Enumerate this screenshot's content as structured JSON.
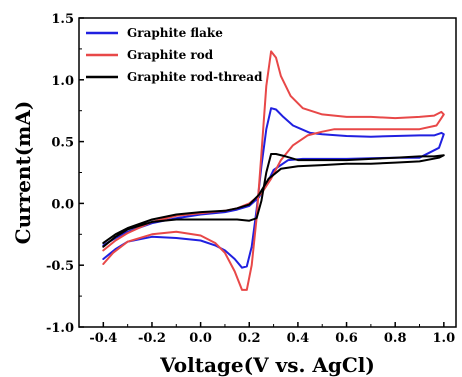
{
  "chart_data": {
    "type": "line",
    "title": "",
    "xlabel": "Voltage(V vs. AgCl)",
    "ylabel": "Current(mA)",
    "xlim": [
      -0.5,
      1.05
    ],
    "ylim": [
      -1.0,
      1.5
    ],
    "xticks": [
      -0.4,
      -0.2,
      0.0,
      0.2,
      0.4,
      0.6,
      0.8,
      1.0
    ],
    "xtick_labels": [
      "-0.4",
      "-0.2",
      "0.0",
      "0.2",
      "0.4",
      "0.6",
      "0.8",
      "1.0"
    ],
    "yticks": [
      -1.0,
      -0.5,
      0.0,
      0.5,
      1.0,
      1.5
    ],
    "ytick_labels": [
      "-1.0",
      "-0.5",
      "0.0",
      "0.5",
      "1.0",
      "1.5"
    ],
    "grid": false,
    "legend_position": "top-left",
    "series": [
      {
        "name": "Graphite flake",
        "color": "#2020e0",
        "points": [
          [
            -0.4,
            -0.45
          ],
          [
            -0.35,
            -0.37
          ],
          [
            -0.3,
            -0.31
          ],
          [
            -0.2,
            -0.27
          ],
          [
            -0.1,
            -0.28
          ],
          [
            0.0,
            -0.3
          ],
          [
            0.06,
            -0.34
          ],
          [
            0.1,
            -0.38
          ],
          [
            0.14,
            -0.45
          ],
          [
            0.17,
            -0.52
          ],
          [
            0.19,
            -0.51
          ],
          [
            0.21,
            -0.35
          ],
          [
            0.23,
            -0.05
          ],
          [
            0.25,
            0.3
          ],
          [
            0.27,
            0.6
          ],
          [
            0.29,
            0.77
          ],
          [
            0.31,
            0.76
          ],
          [
            0.34,
            0.7
          ],
          [
            0.38,
            0.63
          ],
          [
            0.45,
            0.57
          ],
          [
            0.5,
            0.56
          ],
          [
            0.6,
            0.545
          ],
          [
            0.7,
            0.54
          ],
          [
            0.8,
            0.545
          ],
          [
            0.9,
            0.55
          ],
          [
            0.96,
            0.55
          ],
          [
            0.99,
            0.57
          ],
          [
            1.0,
            0.56
          ],
          [
            0.98,
            0.45
          ],
          [
            0.9,
            0.37
          ],
          [
            0.8,
            0.37
          ],
          [
            0.7,
            0.365
          ],
          [
            0.6,
            0.36
          ],
          [
            0.5,
            0.36
          ],
          [
            0.42,
            0.36
          ],
          [
            0.36,
            0.35
          ],
          [
            0.3,
            0.27
          ],
          [
            0.27,
            0.15
          ],
          [
            0.24,
            0.05
          ],
          [
            0.2,
            -0.02
          ],
          [
            0.15,
            -0.05
          ],
          [
            0.1,
            -0.07
          ],
          [
            0.0,
            -0.09
          ],
          [
            -0.1,
            -0.12
          ],
          [
            -0.2,
            -0.16
          ],
          [
            -0.3,
            -0.23
          ],
          [
            -0.35,
            -0.28
          ],
          [
            -0.4,
            -0.34
          ]
        ]
      },
      {
        "name": "Graphite rod",
        "color": "#e84848",
        "points": [
          [
            -0.4,
            -0.49
          ],
          [
            -0.36,
            -0.4
          ],
          [
            -0.3,
            -0.31
          ],
          [
            -0.2,
            -0.25
          ],
          [
            -0.1,
            -0.23
          ],
          [
            0.0,
            -0.26
          ],
          [
            0.06,
            -0.32
          ],
          [
            0.1,
            -0.4
          ],
          [
            0.14,
            -0.55
          ],
          [
            0.17,
            -0.7
          ],
          [
            0.19,
            -0.7
          ],
          [
            0.21,
            -0.5
          ],
          [
            0.23,
            -0.12
          ],
          [
            0.25,
            0.4
          ],
          [
            0.27,
            0.95
          ],
          [
            0.29,
            1.23
          ],
          [
            0.31,
            1.18
          ],
          [
            0.33,
            1.03
          ],
          [
            0.37,
            0.87
          ],
          [
            0.42,
            0.77
          ],
          [
            0.5,
            0.72
          ],
          [
            0.6,
            0.7
          ],
          [
            0.7,
            0.7
          ],
          [
            0.8,
            0.69
          ],
          [
            0.9,
            0.7
          ],
          [
            0.96,
            0.71
          ],
          [
            0.99,
            0.74
          ],
          [
            1.0,
            0.72
          ],
          [
            0.97,
            0.63
          ],
          [
            0.9,
            0.6
          ],
          [
            0.8,
            0.6
          ],
          [
            0.7,
            0.6
          ],
          [
            0.6,
            0.6
          ],
          [
            0.55,
            0.6
          ],
          [
            0.5,
            0.58
          ],
          [
            0.44,
            0.55
          ],
          [
            0.38,
            0.47
          ],
          [
            0.33,
            0.35
          ],
          [
            0.29,
            0.2
          ],
          [
            0.25,
            0.08
          ],
          [
            0.2,
            0.0
          ],
          [
            0.15,
            -0.04
          ],
          [
            0.1,
            -0.06
          ],
          [
            0.0,
            -0.08
          ],
          [
            -0.1,
            -0.1
          ],
          [
            -0.2,
            -0.15
          ],
          [
            -0.3,
            -0.24
          ],
          [
            -0.35,
            -0.3
          ],
          [
            -0.4,
            -0.38
          ]
        ]
      },
      {
        "name": "Graphite rod-thread",
        "color": "#000000",
        "points": [
          [
            -0.4,
            -0.35
          ],
          [
            -0.35,
            -0.27
          ],
          [
            -0.3,
            -0.21
          ],
          [
            -0.2,
            -0.15
          ],
          [
            -0.1,
            -0.13
          ],
          [
            0.0,
            -0.13
          ],
          [
            0.1,
            -0.13
          ],
          [
            0.15,
            -0.13
          ],
          [
            0.2,
            -0.14
          ],
          [
            0.23,
            -0.12
          ],
          [
            0.25,
            0.02
          ],
          [
            0.27,
            0.25
          ],
          [
            0.29,
            0.4
          ],
          [
            0.31,
            0.4
          ],
          [
            0.35,
            0.38
          ],
          [
            0.4,
            0.35
          ],
          [
            0.5,
            0.35
          ],
          [
            0.6,
            0.35
          ],
          [
            0.7,
            0.36
          ],
          [
            0.8,
            0.37
          ],
          [
            0.9,
            0.38
          ],
          [
            0.96,
            0.38
          ],
          [
            1.0,
            0.39
          ],
          [
            0.98,
            0.37
          ],
          [
            0.9,
            0.34
          ],
          [
            0.8,
            0.33
          ],
          [
            0.7,
            0.32
          ],
          [
            0.6,
            0.32
          ],
          [
            0.5,
            0.31
          ],
          [
            0.4,
            0.3
          ],
          [
            0.33,
            0.28
          ],
          [
            0.28,
            0.2
          ],
          [
            0.24,
            0.07
          ],
          [
            0.2,
            -0.01
          ],
          [
            0.15,
            -0.04
          ],
          [
            0.1,
            -0.06
          ],
          [
            0.0,
            -0.07
          ],
          [
            -0.1,
            -0.09
          ],
          [
            -0.2,
            -0.13
          ],
          [
            -0.3,
            -0.2
          ],
          [
            -0.35,
            -0.25
          ],
          [
            -0.4,
            -0.32
          ]
        ]
      }
    ]
  }
}
